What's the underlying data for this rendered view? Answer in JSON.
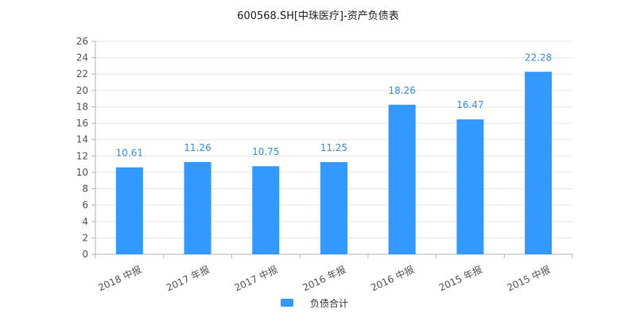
{
  "chart_data": {
    "type": "bar",
    "title": "600568.SH[中珠医疗]-资产负债表",
    "categories": [
      "2018 中报",
      "2017 年报",
      "2017 中报",
      "2016 年报",
      "2016 中报",
      "2015 年报",
      "2015 中报"
    ],
    "series": [
      {
        "name": "负债合计",
        "values": [
          10.61,
          11.26,
          10.75,
          11.25,
          18.26,
          16.47,
          22.28
        ],
        "data_labels": [
          "10.61",
          "11.26",
          "10.75",
          "11.25",
          "18.26",
          "16.47",
          "22.28"
        ]
      }
    ],
    "ylim": [
      0,
      26
    ],
    "yticks": [
      "0",
      "2",
      "4",
      "6",
      "8",
      "10",
      "12",
      "14",
      "16",
      "18",
      "20",
      "22",
      "24",
      "26"
    ],
    "grid": true,
    "legend_position": "bottom-center",
    "colors": {
      "bar": "#3399ff",
      "data_label": "#3a8fd9",
      "grid": "#e6e6e6",
      "axis": "#b3b3b3",
      "tick_text": "#555555",
      "title_text": "#222222"
    }
  }
}
